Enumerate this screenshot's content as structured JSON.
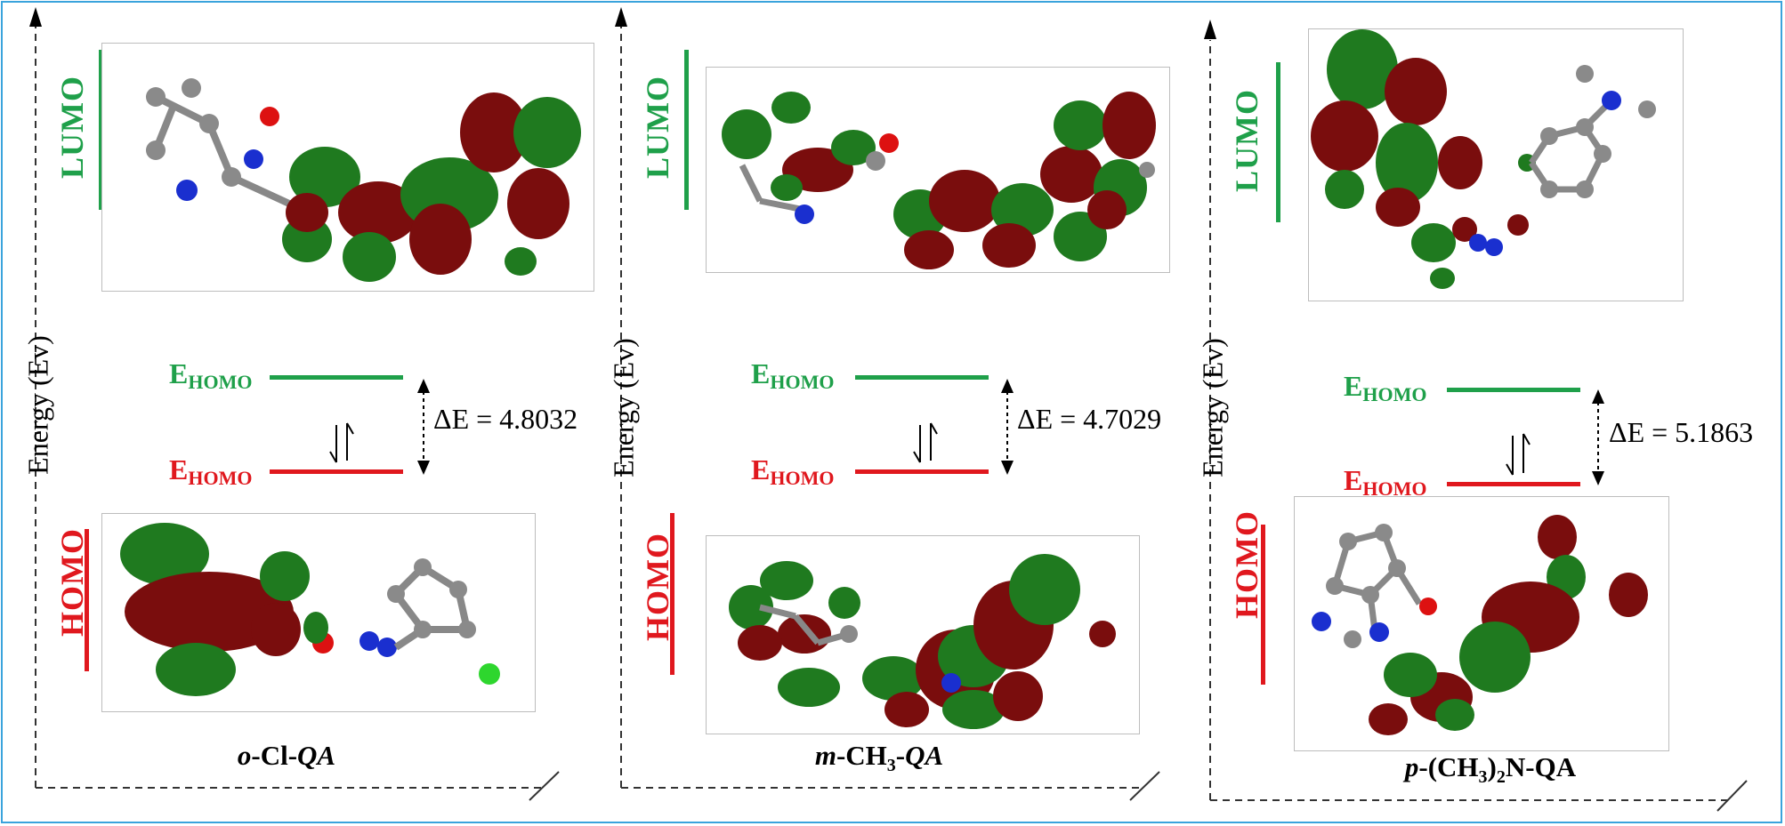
{
  "axis_label": "Energy (Ev)",
  "lumo_label": "LUMO",
  "homo_label": "HOMO",
  "level_main": "E",
  "level_sub": "HOMO",
  "colors": {
    "lumo": "#1fa04a",
    "homo": "#e0181e",
    "border": "#3aa3dc",
    "orbital_green": "#1f7a1f",
    "orbital_red": "#7a0d0d"
  },
  "panels": [
    {
      "gap": "ΔE = 4.8032",
      "compound_prefix": "o",
      "compound_middle": "-Cl-",
      "compound_suffix": "QA"
    },
    {
      "gap": "ΔE = 4.7029",
      "compound_prefix": "m",
      "compound_middle": "-CH",
      "compound_sub": "3",
      "compound_tail": "-",
      "compound_suffix": "QA"
    },
    {
      "gap": "ΔE = 5.1863",
      "compound_prefix": "p",
      "compound_middle": "-(CH",
      "compound_sub": "3",
      "compound_tail": ")",
      "compound_sub2": "2",
      "compound_end": "N-QA"
    }
  ]
}
